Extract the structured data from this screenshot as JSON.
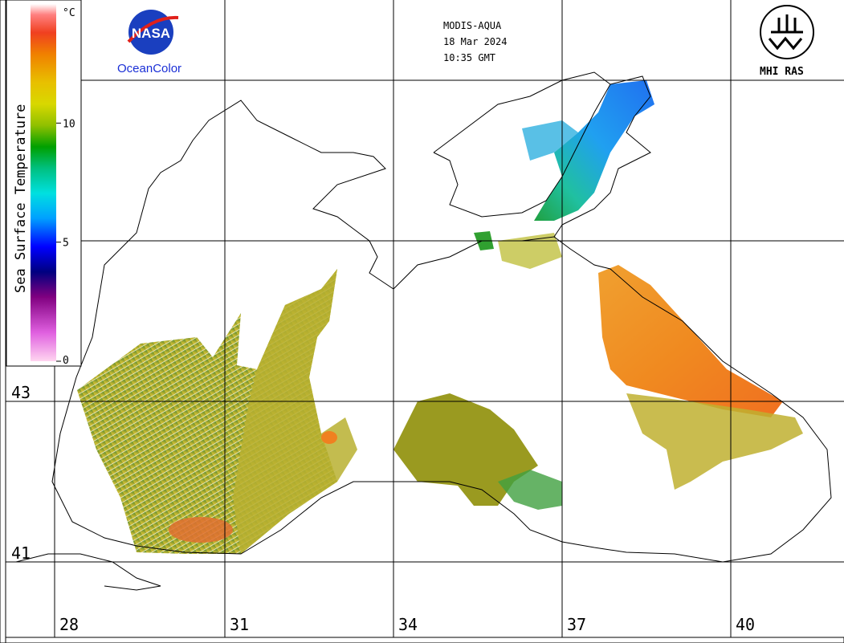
{
  "header": {
    "sensor": "MODIS-AQUA",
    "date": "18 Mar 2024",
    "time": "10:35 GMT"
  },
  "logos": {
    "nasa": "NASA",
    "oceancolor": "OceanColor",
    "mhi": "MHI RAS"
  },
  "legend": {
    "title": "Sea Surface Temperature",
    "unit": "°C",
    "ticks": [
      {
        "value": 10,
        "label": "10"
      },
      {
        "value": 5,
        "label": "5"
      },
      {
        "value": 0,
        "label": "0"
      }
    ],
    "range": [
      0,
      15
    ],
    "colors": [
      "#ffd6f0",
      "#e060e0",
      "#800080",
      "#000080",
      "#0000ff",
      "#00a0ff",
      "#00e0e0",
      "#00c080",
      "#00a000",
      "#90c000",
      "#d8d800",
      "#e8c000",
      "#f08000",
      "#f04020",
      "#ff8080",
      "#ffffff"
    ]
  },
  "axes": {
    "longitude_labels": [
      "28",
      "31",
      "34",
      "37",
      "40"
    ],
    "latitude_labels": [
      "43",
      "41"
    ]
  }
}
